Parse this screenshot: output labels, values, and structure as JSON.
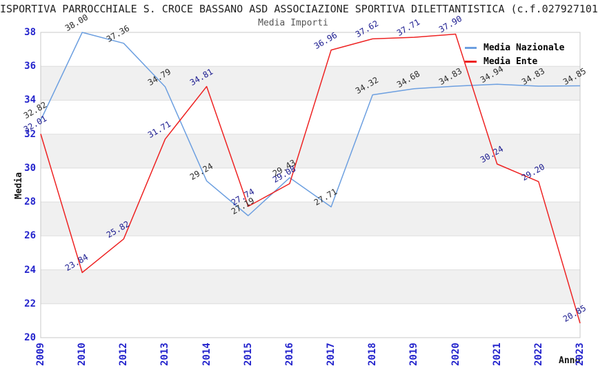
{
  "title": "ISPORTIVA PARROCCHIALE S. CROCE BASSANO ASD ASSOCIAZIONE SPORTIVA DILETTANTISTICA (c.f.027927101",
  "subtitle": "Media Importi",
  "x_axis_label": "Anno",
  "y_axis_label": "Media",
  "legend": {
    "position": "top-right",
    "items": [
      {
        "label": "Media Nazionale",
        "color": "#6C9FE0"
      },
      {
        "label": "Media Ente",
        "color": "#EE2222"
      }
    ]
  },
  "chart_data": {
    "type": "line",
    "title": "Media Importi",
    "xlabel": "Anno",
    "ylabel": "Media",
    "ylim": [
      20,
      38
    ],
    "y_ticks": [
      20,
      22,
      24,
      26,
      28,
      30,
      32,
      34,
      36,
      38
    ],
    "grid": "horizontal gridlines with alternating shaded bands",
    "legend_position": "top-right",
    "categories": [
      "2009",
      "2010",
      "2012",
      "2013",
      "2014",
      "2015",
      "2016",
      "2017",
      "2018",
      "2019",
      "2020",
      "2021",
      "2022",
      "2023"
    ],
    "series": [
      {
        "name": "Media Nazionale",
        "color": "#6C9FE0",
        "label_color": "#2B2B2B",
        "values": [
          32.82,
          38.0,
          37.36,
          34.79,
          29.24,
          27.19,
          29.43,
          27.71,
          34.32,
          34.68,
          34.83,
          34.94,
          34.83,
          34.85
        ]
      },
      {
        "name": "Media Ente",
        "color": "#EE2222",
        "label_color": "#1A1A8F",
        "values": [
          32.01,
          23.84,
          25.82,
          31.71,
          34.81,
          27.74,
          29.08,
          36.96,
          37.62,
          37.71,
          37.9,
          30.24,
          29.2,
          20.85
        ]
      }
    ]
  },
  "colors": {
    "tick_label": "#2323CC",
    "band_fill": "#F0F0F0",
    "grid_line": "#DDDDDD",
    "plot_border": "#C8C8C8"
  }
}
